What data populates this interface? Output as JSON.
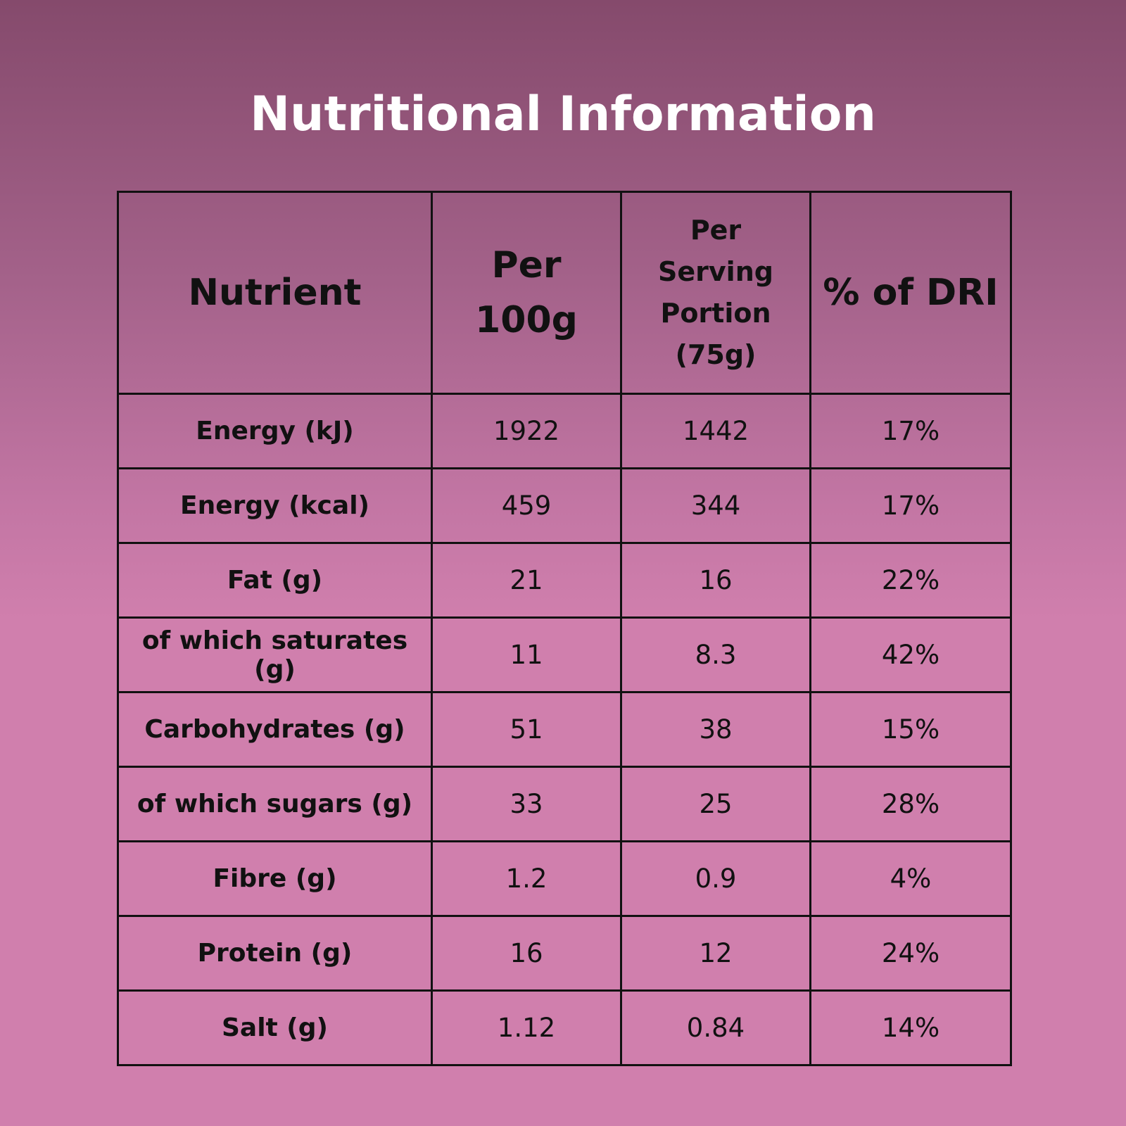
{
  "title": "Nutritional Information",
  "colors": {
    "title_text": "#ffffff",
    "background_top": "#854a6c",
    "background_bottom": "#d07fad",
    "table_border": "#111111"
  },
  "table": {
    "headers": {
      "nutrient": "Nutrient",
      "per_100g_line1": "Per",
      "per_100g_line2": "100g",
      "serving_line1": "Per",
      "serving_line2": "Serving",
      "serving_line3": "Portion",
      "serving_line4": "(75g)",
      "dri": "% of DRI"
    },
    "rows": [
      {
        "nutrient": "Energy (kJ)",
        "per_100g": "1922",
        "per_serving": "1442",
        "dri": "17%"
      },
      {
        "nutrient": "Energy (kcal)",
        "per_100g": "459",
        "per_serving": "344",
        "dri": "17%"
      },
      {
        "nutrient": "Fat (g)",
        "per_100g": "21",
        "per_serving": "16",
        "dri": "22%"
      },
      {
        "nutrient": "of which saturates (g)",
        "per_100g": "11",
        "per_serving": "8.3",
        "dri": "42%"
      },
      {
        "nutrient": "Carbohydrates (g)",
        "per_100g": "51",
        "per_serving": "38",
        "dri": "15%"
      },
      {
        "nutrient": "of which sugars (g)",
        "per_100g": "33",
        "per_serving": "25",
        "dri": "28%"
      },
      {
        "nutrient": "Fibre (g)",
        "per_100g": "1.2",
        "per_serving": "0.9",
        "dri": "4%"
      },
      {
        "nutrient": "Protein (g)",
        "per_100g": "16",
        "per_serving": "12",
        "dri": "24%"
      },
      {
        "nutrient": "Salt (g)",
        "per_100g": "1.12",
        "per_serving": "0.84",
        "dri": "14%"
      }
    ]
  }
}
